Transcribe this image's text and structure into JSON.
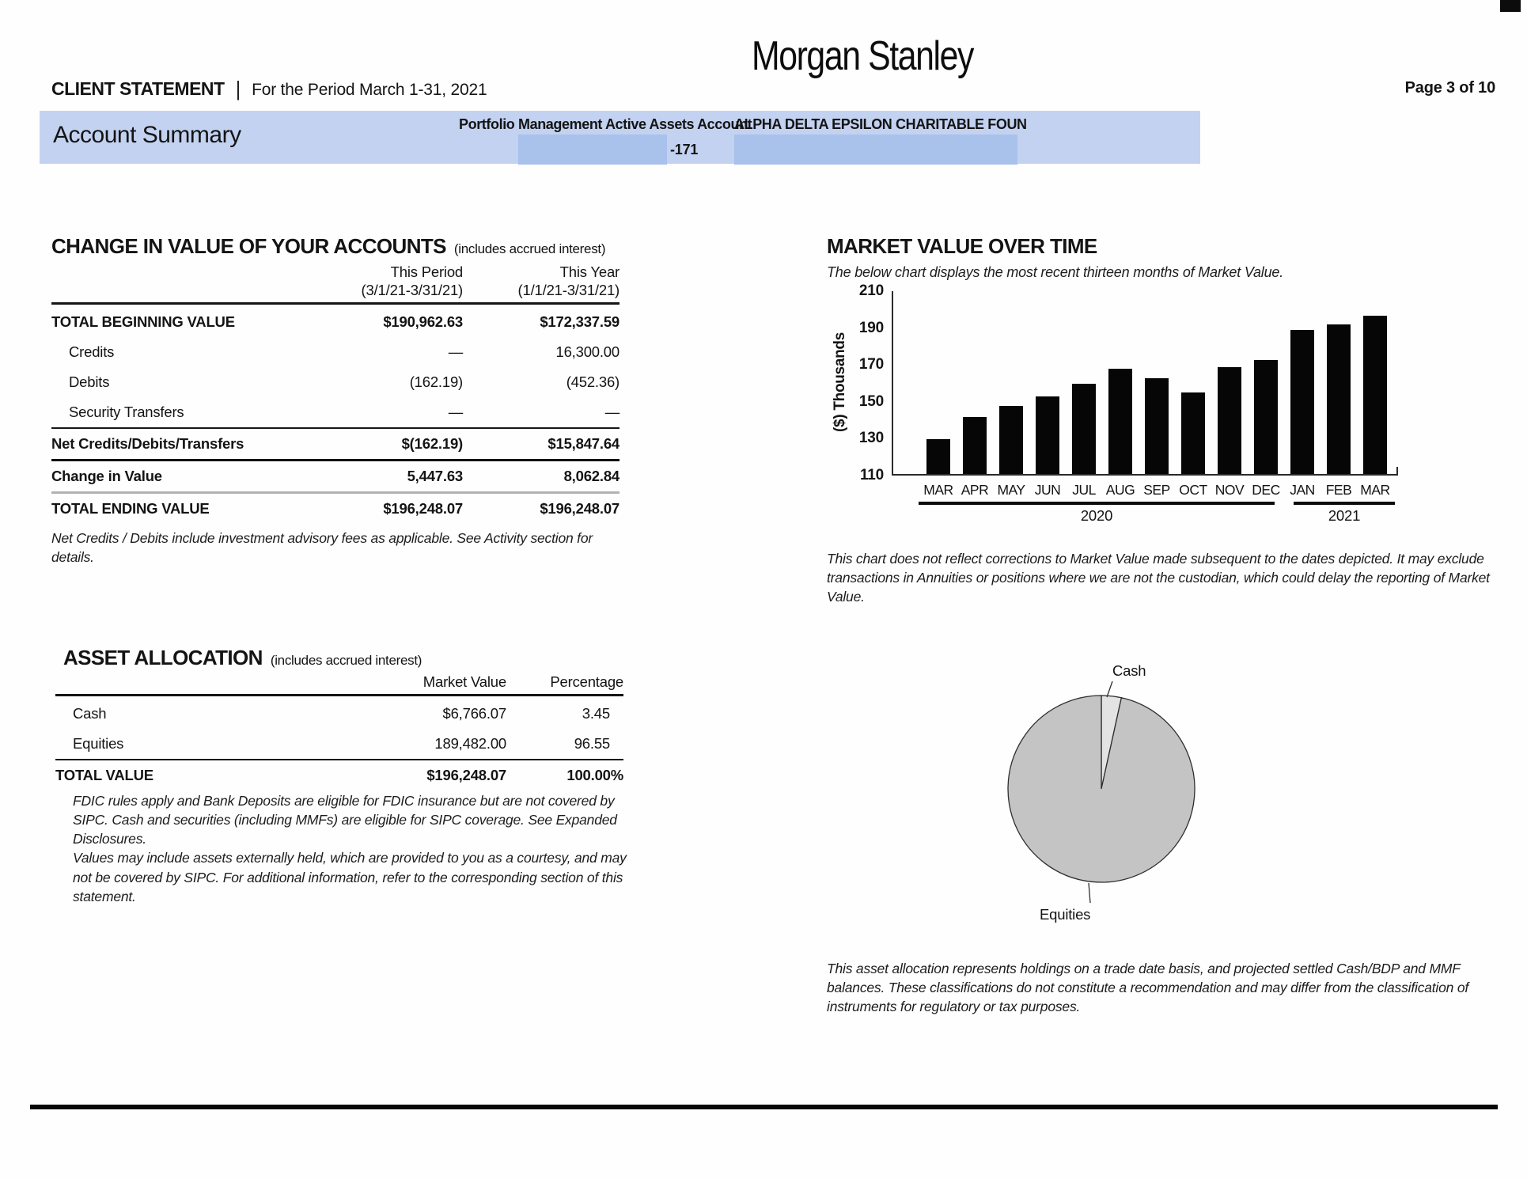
{
  "header": {
    "brand": "Morgan Stanley",
    "title": "CLIENT STATEMENT",
    "separator": "|",
    "period": "For the Period March 1-31, 2021",
    "page": "Page 3 of 10"
  },
  "banner": {
    "title": "Account Summary",
    "account_type": "Portfolio Management Active Assets Account",
    "account_suffix": "-171",
    "account_name": "ALPHA DELTA EPSILON CHARITABLE FOUN"
  },
  "change_in_value": {
    "title": "CHANGE IN VALUE OF YOUR ACCOUNTS",
    "subtitle": "(includes accrued interest)",
    "col1_label": "This Period",
    "col1_sub": "(3/1/21-3/31/21)",
    "col2_label": "This Year",
    "col2_sub": "(1/1/21-3/31/21)",
    "rows": [
      {
        "label": "TOTAL BEGINNING VALUE",
        "period": "$190,962.63",
        "year": "$172,337.59"
      },
      {
        "label": "Credits",
        "period": "—",
        "year": "16,300.00"
      },
      {
        "label": "Debits",
        "period": "(162.19)",
        "year": "(452.36)"
      },
      {
        "label": "Security Transfers",
        "period": "—",
        "year": "—"
      },
      {
        "label": "Net Credits/Debits/Transfers",
        "period": "$(162.19)",
        "year": "$15,847.64"
      },
      {
        "label": "Change in Value",
        "period": "5,447.63",
        "year": "8,062.84"
      },
      {
        "label": "TOTAL ENDING VALUE",
        "period": "$196,248.07",
        "year": "$196,248.07"
      }
    ],
    "footnote": "Net Credits / Debits include investment advisory fees as applicable. See Activity section for details."
  },
  "asset_allocation": {
    "title": "ASSET ALLOCATION",
    "subtitle": "(includes accrued interest)",
    "col1_label": "Market Value",
    "col2_label": "Percentage",
    "rows": [
      {
        "label": "Cash",
        "value": "$6,766.07",
        "pct": "3.45"
      },
      {
        "label": "Equities",
        "value": "189,482.00",
        "pct": "96.55"
      },
      {
        "label": "TOTAL VALUE",
        "value": "$196,248.07",
        "pct": "100.00%"
      }
    ],
    "footnote1": "FDIC rules apply and Bank Deposits are eligible for FDIC insurance but are not covered by SIPC. Cash and securities (including MMFs) are eligible for SIPC coverage. See Expanded Disclosures.",
    "footnote2": "Values may include assets externally held, which are provided to you as a courtesy, and may not be covered by SIPC. For additional information, refer to the corresponding section of this statement."
  },
  "market_value": {
    "title": "MARKET VALUE OVER TIME",
    "subtitle": "The below chart displays the most recent thirteen months of Market Value.",
    "footnote": "This chart does not reflect corrections to Market Value made subsequent to the dates depicted. It may exclude transactions in Annuities or positions where we are not the custodian, which could delay the reporting of Market Value."
  },
  "pie_section": {
    "footnote": "This asset allocation represents holdings on a trade date basis, and projected settled Cash/BDP and MMF balances.  These classifications do not constitute a recommendation and may differ from the classification of instruments for regulatory or tax purposes."
  },
  "chart_data": [
    {
      "type": "bar",
      "title": "MARKET VALUE OVER TIME",
      "xlabel": "",
      "ylabel": "($)  Thousands",
      "ylim": [
        110,
        210
      ],
      "yticks": [
        210,
        190,
        170,
        150,
        130,
        110
      ],
      "categories": [
        "MAR",
        "APR",
        "MAY",
        "JUN",
        "JUL",
        "AUG",
        "SEP",
        "OCT",
        "NOV",
        "DEC",
        "JAN",
        "FEB",
        "MAR"
      ],
      "values": [
        129,
        141,
        147,
        152,
        159,
        167,
        162,
        154,
        168,
        172,
        188,
        191,
        196
      ],
      "year_groups": [
        {
          "label": "2020",
          "from": 0,
          "to": 9
        },
        {
          "label": "2021",
          "from": 10,
          "to": 12
        }
      ],
      "bar_color": "#060606",
      "grid": false,
      "legend": "none"
    },
    {
      "type": "pie",
      "slices": [
        {
          "label": "Cash",
          "value": 3.45,
          "color": "#e3e3e3"
        },
        {
          "label": "Equities",
          "value": 96.55,
          "color": "#c4c4c4"
        }
      ],
      "start_angle_deg": -90,
      "outline_color": "#2e2e2e"
    }
  ]
}
